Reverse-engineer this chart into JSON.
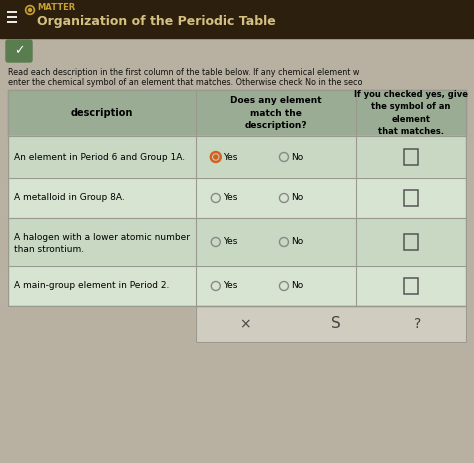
{
  "title": "Organization of the Periodic Table",
  "matter_label": "MATTER",
  "header_bg": "#2d1f0e",
  "page_bg": "#b8b0a0",
  "table_area_bg": "#c5bfb0",
  "header_row_bg": "#9aad94",
  "row_bg_odd": "#c8d8c2",
  "row_bg_even": "#d8e4d2",
  "row_bg_white": "#e8e8e0",
  "bottom_bar_bg": "#d0ccc0",
  "intro_text_line1": "Read each description in the first column of the table below. If any chemical element w",
  "intro_text_line2": "enter the chemical symbol of an element that matches. Otherwise check No in the seco",
  "col_headers": [
    "description",
    "Does any element\nmatch the\ndescription?",
    "If you checked yes, give\nthe symbol of an\nelement\nthat matches."
  ],
  "rows": [
    {
      "description": "An element in Period 6 and Group 1A.",
      "desc2": "",
      "yes_selected": true
    },
    {
      "description": "A metalloid in Group 8A.",
      "desc2": "",
      "yes_selected": false
    },
    {
      "description": "A halogen with a lower atomic number",
      "desc2": "than strontium.",
      "yes_selected": false
    },
    {
      "description": "A main-group element in Period 2.",
      "desc2": "",
      "yes_selected": false
    }
  ],
  "bottom_symbols": [
    "×",
    "S",
    "?"
  ],
  "yes_color": "#d46020",
  "radio_empty_color": "#888888",
  "text_color": "#111111",
  "border_color": "#999990"
}
